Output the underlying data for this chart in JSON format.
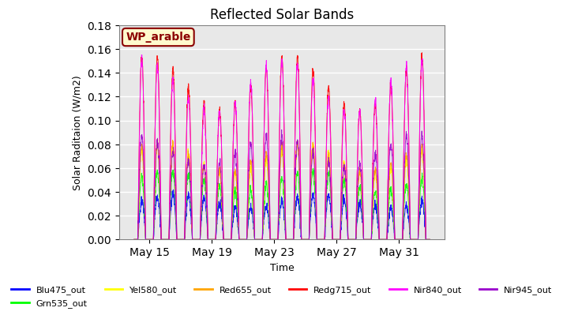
{
  "title": "Reflected Solar Bands",
  "xlabel": "Time",
  "ylabel": "Solar Raditaion (W/m2)",
  "ylim": [
    0,
    0.18
  ],
  "annotation_text": "WP_arable",
  "annotation_color": "#8B0000",
  "annotation_bg": "#FFFACD",
  "background_color": "#E8E8E8",
  "grid_color": "white",
  "series": [
    {
      "label": "Blu475_out",
      "color": "blue",
      "scale": 0.038
    },
    {
      "label": "Grn535_out",
      "color": "lime",
      "scale": 0.058
    },
    {
      "label": "Yel580_out",
      "color": "yellow",
      "scale": 0.08
    },
    {
      "label": "Red655_out",
      "color": "orange",
      "scale": 0.082
    },
    {
      "label": "Redg715_out",
      "color": "red",
      "scale": 0.155
    },
    {
      "label": "Nir840_out",
      "color": "magenta",
      "scale": 0.152
    },
    {
      "label": "Nir945_out",
      "color": "#9900CC",
      "scale": 0.088
    }
  ],
  "start_day": 14,
  "end_day": 33,
  "tick_days": [
    15,
    19,
    23,
    27,
    31
  ],
  "n_points": 1900
}
